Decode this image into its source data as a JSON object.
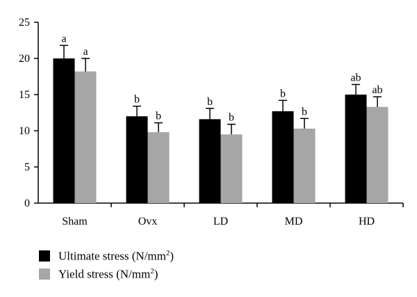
{
  "chart_data": {
    "type": "bar",
    "categories": [
      "Sham",
      "Ovx",
      "LD",
      "MD",
      "HD"
    ],
    "ylim": [
      0,
      25
    ],
    "yticks": [
      0,
      5,
      10,
      15,
      20,
      25
    ],
    "grid": false,
    "legend_position": "bottom-left",
    "series": [
      {
        "name": "Ultimate stress (N/mm²)",
        "color": "#000000",
        "values": [
          20.0,
          12.0,
          11.6,
          12.7,
          15.0
        ],
        "errors": [
          1.8,
          1.4,
          1.5,
          1.5,
          1.4
        ],
        "labels": [
          "a",
          "b",
          "b",
          "b",
          "ab"
        ]
      },
      {
        "name": "Yield stress (N/mm²)",
        "color": "#a6a6a6",
        "values": [
          18.2,
          9.8,
          9.5,
          10.3,
          13.3
        ],
        "errors": [
          1.8,
          1.3,
          1.4,
          1.4,
          1.4
        ],
        "labels": [
          "a",
          "b",
          "b",
          "b",
          "ab"
        ]
      }
    ]
  },
  "legend": {
    "items": [
      {
        "text": "Ultimate stress (N/mm",
        "sup": "2",
        "close": ")",
        "color": "#000000"
      },
      {
        "text": "Yield stress (N/mm",
        "sup": "2",
        "close": ")",
        "color": "#a6a6a6"
      }
    ]
  }
}
